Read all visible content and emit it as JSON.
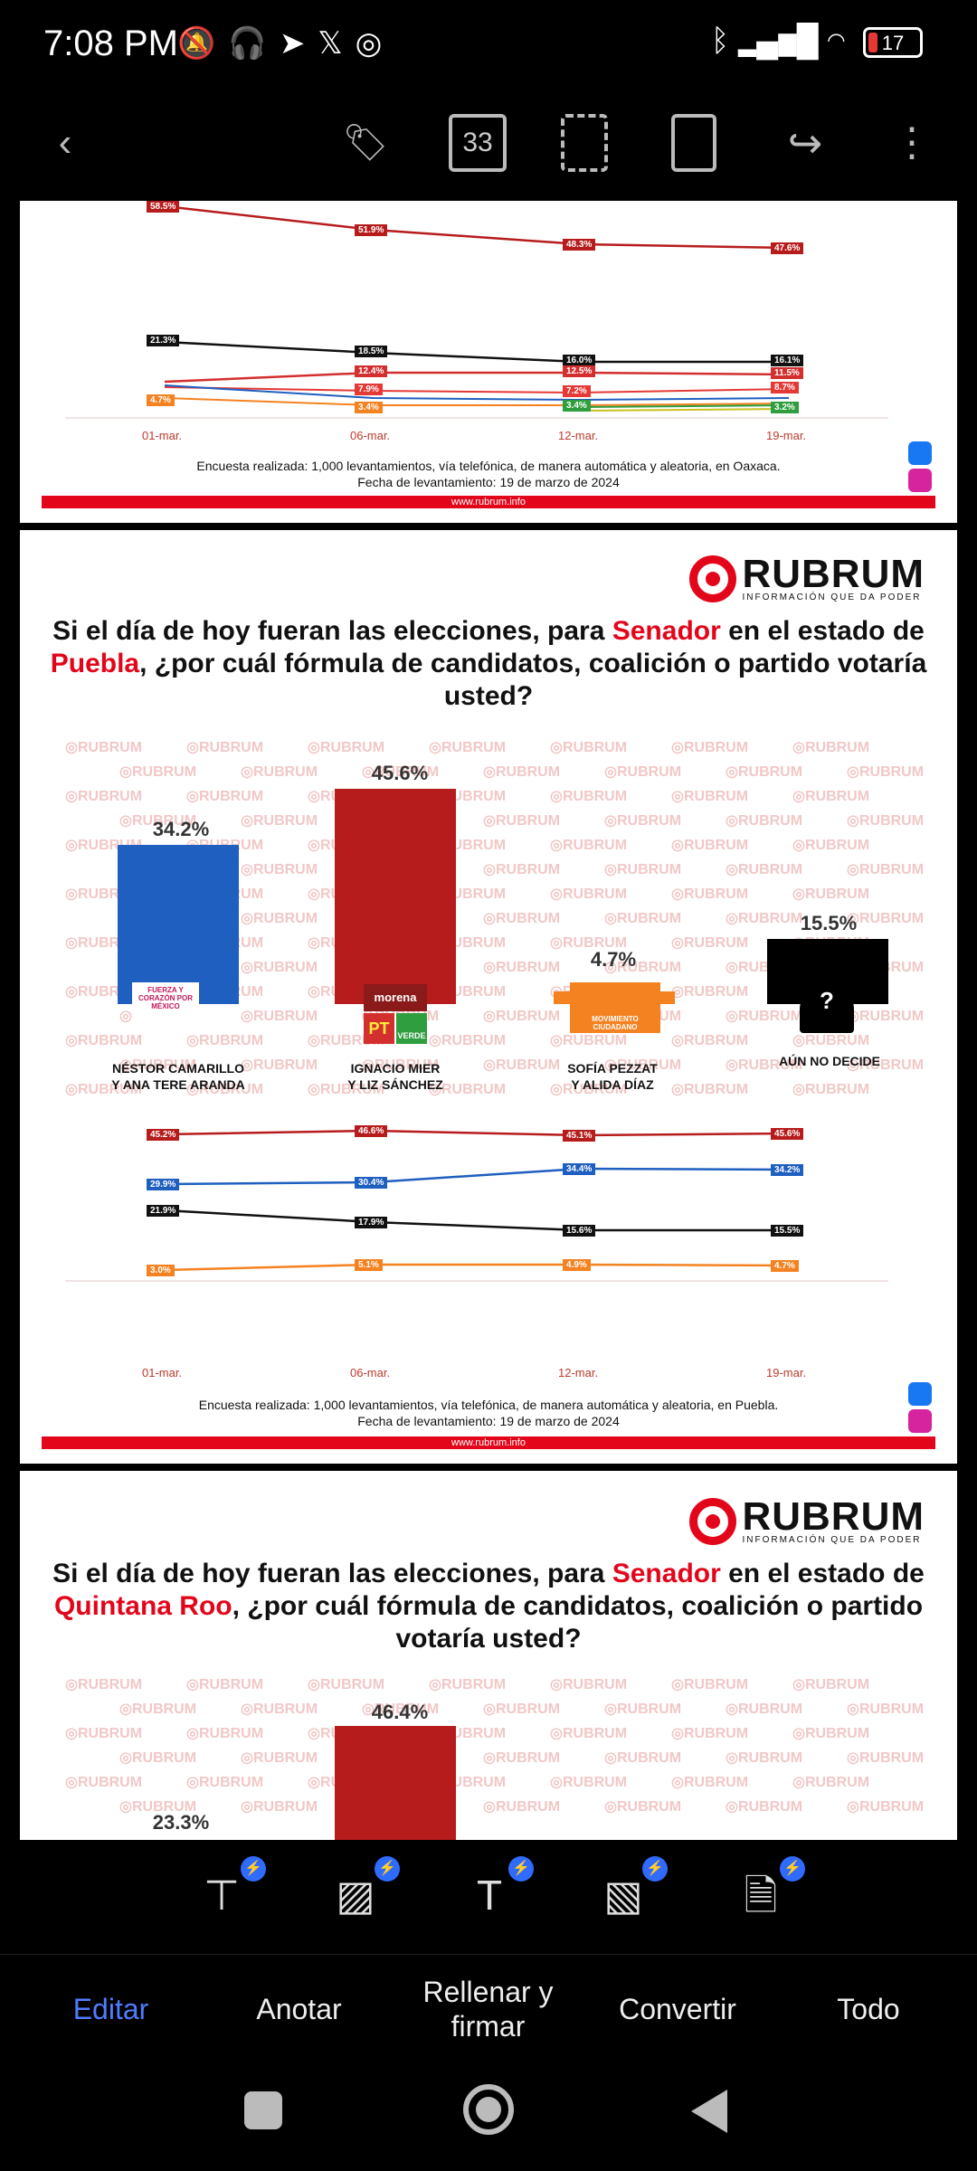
{
  "status_bar": {
    "time": "7:08 PM",
    "battery": "17"
  },
  "toolbar": {
    "pages_count": "33",
    "tag_label": "SALE"
  },
  "page1": {
    "xlabels": [
      "01-mar.",
      "06-mar.",
      "12-mar.",
      "19-mar."
    ],
    "labels": {
      "red": [
        "58.5%",
        "51.9%",
        "48.3%",
        "47.6%"
      ],
      "black": [
        "21.3%",
        "18.5%",
        "16.0%",
        "16.1%"
      ],
      "red2": [
        "12.4%",
        "12.5%",
        "11.5%"
      ],
      "red3": [
        "7.9%",
        "7.2%",
        "8.7%"
      ],
      "orange": [
        "4.7%",
        "3.4%"
      ],
      "green": [
        "3.4%",
        "3.2%"
      ]
    },
    "footnote1": "Encuesta realizada: 1,000 levantamientos, vía telefónica, de manera automática y aleatoria, en Oaxaca.",
    "footnote2": "Fecha de levantamiento: 19 de marzo de 2024",
    "url": "www.rubrum.info"
  },
  "page2": {
    "brand": "RUBRUM",
    "tagline": "INFORMACIÓN QUE DA PODER",
    "title_a": "Si el día de hoy fueran las elecciones, para ",
    "title_red1": "Senador",
    "title_b": " en el estado de ",
    "title_red2": "Puebla",
    "title_c": ", ¿por cuál fórmula de candidatos, coalición o partido votaría usted?",
    "watermark": "RUBRUM",
    "candidates": [
      {
        "name1": "NÉSTOR CAMARILLO",
        "name2": "Y ANA TERE ARANDA",
        "pct": "34.2%",
        "logo": "FUERZA Y CORAZÓN POR MÉXICO"
      },
      {
        "name1": "IGNACIO MIER",
        "name2": "Y LIZ SÁNCHEZ",
        "pct": "45.6%",
        "logo": "morena"
      },
      {
        "name1": "SOFÍA PEZZAT",
        "name2": "Y ALIDA DÍAZ",
        "pct": "4.7%",
        "logo": "MOVIMIENTO CIUDADANO"
      },
      {
        "name1": "AÚN NO DECIDE",
        "name2": "",
        "pct": "15.5%",
        "logo": "?"
      }
    ],
    "logo_pt": "PT",
    "logo_verde": "VERDE",
    "trend": {
      "xlabels": [
        "01-mar.",
        "06-mar.",
        "12-mar.",
        "19-mar."
      ],
      "red": [
        "45.2%",
        "46.6%",
        "45.1%",
        "45.6%"
      ],
      "blue": [
        "29.9%",
        "30.4%",
        "34.4%",
        "34.2%"
      ],
      "black": [
        "21.9%",
        "17.9%",
        "15.6%",
        "15.5%"
      ],
      "orange": [
        "3.0%",
        "5.1%",
        "4.9%",
        "4.7%"
      ]
    },
    "footnote1": "Encuesta realizada: 1,000 levantamientos, vía telefónica, de manera automática y aleatoria, en Puebla.",
    "footnote2": "Fecha de levantamiento: 19 de marzo de 2024",
    "url": "www.rubrum.info"
  },
  "page3": {
    "brand": "RUBRUM",
    "tagline": "INFORMACIÓN QUE DA PODER",
    "title_a": "Si el día de hoy fueran las elecciones, para ",
    "title_red1": "Senador",
    "title_b": " en el estado de ",
    "title_red2": "Quintana Roo",
    "title_c": ", ¿por cuál fórmula de candidatos, coalición o partido votaría usted?",
    "pct_a": "46.4%",
    "pct_b": "23.3%"
  },
  "bottom_tabs": [
    "Editar",
    "Anotar",
    "Rellenar y firmar",
    "Convertir",
    "Todo"
  ],
  "colors": {
    "accent": "#4f7cff",
    "brand_red": "#e3061b",
    "bar_red": "#b71c1c",
    "bar_blue": "#1f5fbf",
    "bar_orange": "#f58220"
  }
}
